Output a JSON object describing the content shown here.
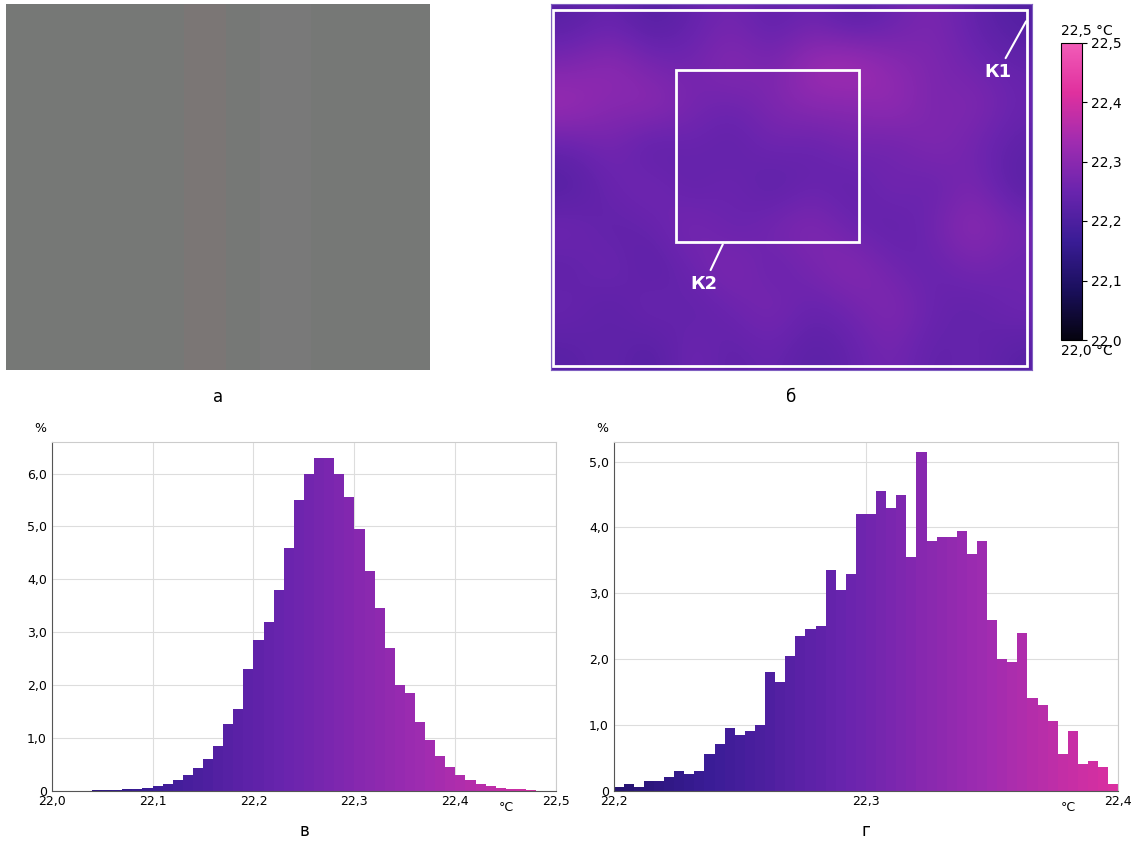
{
  "chart_data": [
    {
      "type": "image",
      "title": "а"
    },
    {
      "type": "heatmap",
      "title": "б",
      "annotations": [
        "К1",
        "К2"
      ],
      "cells": [
        [
          22.22,
          22.25,
          22.21,
          22.24,
          22.27,
          22.23,
          22.26,
          22.22,
          22.25,
          22.28,
          22.24,
          22.21
        ],
        [
          22.28,
          22.31,
          22.27,
          22.26,
          22.3,
          22.27,
          22.33,
          22.35,
          22.3,
          22.28,
          22.26,
          22.24
        ],
        [
          22.33,
          22.29,
          22.31,
          22.27,
          22.25,
          22.28,
          22.3,
          22.29,
          22.32,
          22.27,
          22.29,
          22.25
        ],
        [
          22.24,
          22.27,
          22.22,
          22.25,
          22.23,
          22.26,
          22.24,
          22.27,
          22.25,
          22.29,
          22.26,
          22.23
        ],
        [
          22.21,
          22.25,
          22.27,
          22.23,
          22.26,
          22.22,
          22.25,
          22.23,
          22.27,
          22.24,
          22.28,
          22.22
        ],
        [
          22.26,
          22.23,
          22.24,
          22.28,
          22.24,
          22.27,
          22.29,
          22.25,
          22.23,
          22.26,
          22.31,
          22.27
        ],
        [
          22.23,
          22.26,
          22.22,
          22.25,
          22.29,
          22.24,
          22.27,
          22.3,
          22.26,
          22.24,
          22.27,
          22.25
        ],
        [
          22.25,
          22.22,
          22.26,
          22.23,
          22.25,
          22.28,
          22.24,
          22.26,
          22.29,
          22.25,
          22.23,
          22.26
        ],
        [
          22.22,
          22.24,
          22.21,
          22.26,
          22.23,
          22.25,
          22.22,
          22.24,
          22.27,
          22.23,
          22.25,
          22.22
        ]
      ],
      "colorbar_range": [
        22.0,
        22.5
      ],
      "colorbar_ticks": [
        {
          "value": 22.0,
          "label": "22,0"
        },
        {
          "value": 22.1,
          "label": "22,1"
        },
        {
          "value": 22.2,
          "label": "22,2"
        },
        {
          "value": 22.3,
          "label": "22,3"
        },
        {
          "value": 22.4,
          "label": "22,4"
        },
        {
          "value": 22.5,
          "label": "22,5"
        }
      ],
      "colorbar_max_label": "22,5 °C",
      "colorbar_min_label": "22,0 °C"
    },
    {
      "type": "histogram",
      "title": "в",
      "y_label": "%",
      "x_label": "°C",
      "bins": [
        22.0,
        22.01,
        22.02,
        22.03,
        22.04,
        22.05,
        22.06,
        22.07,
        22.08,
        22.09,
        22.1,
        22.11,
        22.12,
        22.13,
        22.14,
        22.15,
        22.16,
        22.17,
        22.18,
        22.19,
        22.2,
        22.21,
        22.22,
        22.23,
        22.24,
        22.25,
        22.26,
        22.27,
        22.28,
        22.29,
        22.3,
        22.31,
        22.32,
        22.33,
        22.34,
        22.35,
        22.36,
        22.37,
        22.38,
        22.39,
        22.4,
        22.41,
        22.42,
        22.43,
        22.44,
        22.45,
        22.46,
        22.47,
        22.48,
        22.49,
        22.5
      ],
      "counts": [
        0,
        0,
        0,
        0,
        0.01,
        0.01,
        0.01,
        0.02,
        0.03,
        0.05,
        0.08,
        0.12,
        0.2,
        0.3,
        0.42,
        0.6,
        0.85,
        1.25,
        1.55,
        2.3,
        2.85,
        3.2,
        3.8,
        4.6,
        5.5,
        6.0,
        6.3,
        6.3,
        6.0,
        5.55,
        4.95,
        4.15,
        3.45,
        2.7,
        2.0,
        1.85,
        1.3,
        0.95,
        0.65,
        0.45,
        0.3,
        0.2,
        0.12,
        0.08,
        0.05,
        0.03,
        0.02,
        0.01,
        0,
        0
      ],
      "xlim": [
        22.0,
        22.5
      ],
      "xticks": [
        {
          "value": 22.0,
          "label": "22,0"
        },
        {
          "value": 22.1,
          "label": "22,1"
        },
        {
          "value": 22.2,
          "label": "22,2"
        },
        {
          "value": 22.3,
          "label": "22,3"
        },
        {
          "value": 22.4,
          "label": "22,4"
        },
        {
          "value": 22.5,
          "label": "22,5"
        }
      ],
      "ylim": [
        0,
        6.6
      ],
      "yticks": [
        0,
        {
          "value": 1.0,
          "label": "1,0"
        },
        {
          "value": 2.0,
          "label": "2,0"
        },
        {
          "value": 3.0,
          "label": "3,0"
        },
        {
          "value": 4.0,
          "label": "4,0"
        },
        {
          "value": 5.0,
          "label": "5,0"
        },
        {
          "value": 6.0,
          "label": "6,0"
        }
      ],
      "grid": true
    },
    {
      "type": "histogram",
      "title": "г",
      "y_label": "%",
      "x_label": "°C",
      "bins": [
        22.2,
        22.204,
        22.208,
        22.212,
        22.216,
        22.22,
        22.224,
        22.228,
        22.232,
        22.236,
        22.24,
        22.244,
        22.248,
        22.252,
        22.256,
        22.26,
        22.264,
        22.268,
        22.272,
        22.276,
        22.28,
        22.284,
        22.288,
        22.292,
        22.296,
        22.3,
        22.304,
        22.308,
        22.312,
        22.316,
        22.32,
        22.324,
        22.328,
        22.332,
        22.336,
        22.34,
        22.344,
        22.348,
        22.352,
        22.356,
        22.36,
        22.364,
        22.368,
        22.372,
        22.376,
        22.38,
        22.384,
        22.388,
        22.392,
        22.396,
        22.4
      ],
      "counts": [
        0.05,
        0.1,
        0.05,
        0.15,
        0.15,
        0.2,
        0.3,
        0.25,
        0.3,
        0.55,
        0.7,
        0.95,
        0.85,
        0.9,
        1.0,
        1.8,
        1.65,
        2.05,
        2.35,
        2.45,
        2.5,
        3.35,
        3.05,
        3.3,
        4.2,
        4.2,
        4.55,
        4.3,
        4.5,
        3.55,
        5.15,
        3.8,
        3.85,
        3.85,
        3.95,
        3.6,
        3.8,
        2.6,
        2.0,
        1.95,
        2.4,
        1.4,
        1.3,
        1.05,
        0.55,
        0.9,
        0.4,
        0.45,
        0.35,
        0.1
      ],
      "xlim": [
        22.2,
        22.4
      ],
      "xticks": [
        {
          "value": 22.2,
          "label": "22,2"
        },
        {
          "value": 22.3,
          "label": "22,3"
        },
        {
          "value": 22.4,
          "label": "22,4"
        }
      ],
      "ylim": [
        0,
        5.3
      ],
      "yticks": [
        0,
        {
          "value": 1.0,
          "label": "1,0"
        },
        {
          "value": 2.0,
          "label": "2,0"
        },
        {
          "value": 3.0,
          "label": "3,0"
        },
        {
          "value": 4.0,
          "label": "4,0"
        },
        {
          "value": 5.0,
          "label": "5,0"
        }
      ],
      "grid": true
    }
  ]
}
